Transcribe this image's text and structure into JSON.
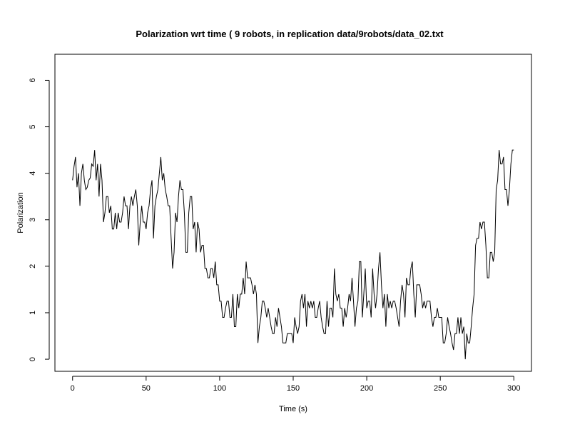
{
  "chart_data": {
    "type": "line",
    "title": "Polarization wrt time ( 9 robots, in replication  data/9robots/data_02.txt",
    "xlabel": "Time (s)",
    "ylabel": "Polarization",
    "xlim": [
      -12,
      312
    ],
    "ylim": [
      -0.26,
      6.56
    ],
    "xticks": [
      0,
      50,
      100,
      150,
      200,
      250,
      300
    ],
    "yticks": [
      0,
      1,
      2,
      3,
      4,
      5,
      6
    ],
    "line_color": "#000000",
    "grid": false,
    "series": [
      {
        "x": [
          0,
          1,
          2,
          3,
          4,
          5,
          6,
          7,
          8,
          9,
          10,
          11,
          12,
          13,
          14,
          15,
          16,
          17,
          18,
          19,
          20,
          21,
          22,
          23,
          24,
          25,
          26,
          27,
          28,
          29,
          30,
          31,
          32,
          33,
          34,
          35,
          36,
          37,
          38,
          39,
          40,
          41,
          42,
          43,
          44,
          45,
          46,
          47,
          48,
          49,
          50,
          51,
          52,
          53,
          54,
          55,
          56,
          57,
          58,
          59,
          60,
          61,
          62,
          63,
          64,
          65,
          66,
          67,
          68,
          69,
          70,
          71,
          72,
          73,
          74,
          75,
          76,
          77,
          78,
          79,
          80,
          81,
          82,
          83,
          84,
          85,
          86,
          87,
          88,
          89,
          90,
          91,
          92,
          93,
          94,
          95,
          96,
          97,
          98,
          99,
          100,
          101,
          102,
          103,
          104,
          105,
          106,
          107,
          108,
          109,
          110,
          111,
          112,
          113,
          114,
          115,
          116,
          117,
          118,
          119,
          120,
          121,
          122,
          123,
          124,
          125,
          126,
          127,
          128,
          129,
          130,
          131,
          132,
          133,
          134,
          135,
          136,
          137,
          138,
          139,
          140,
          141,
          142,
          143,
          144,
          145,
          146,
          147,
          148,
          149,
          150,
          151,
          152,
          153,
          154,
          155,
          156,
          157,
          158,
          159,
          160,
          161,
          162,
          163,
          164,
          165,
          166,
          167,
          168,
          169,
          170,
          171,
          172,
          173,
          174,
          175,
          176,
          177,
          178,
          179,
          180,
          181,
          182,
          183,
          184,
          185,
          186,
          187,
          188,
          189,
          190,
          191,
          192,
          193,
          194,
          195,
          196,
          197,
          198,
          199,
          200,
          201,
          202,
          203,
          204,
          205,
          206,
          207,
          208,
          209,
          210,
          211,
          212,
          213,
          214,
          215,
          216,
          217,
          218,
          219,
          220,
          221,
          222,
          223,
          224,
          225,
          226,
          227,
          228,
          229,
          230,
          231,
          232,
          233,
          234,
          235,
          236,
          237,
          238,
          239,
          240,
          241,
          242,
          243,
          244,
          245,
          246,
          247,
          248,
          249,
          250,
          251,
          252,
          253,
          254,
          255,
          256,
          257,
          258,
          259,
          260,
          261,
          262,
          263,
          264,
          265,
          266,
          267,
          268,
          269,
          270,
          271,
          272,
          273,
          274,
          275,
          276,
          277,
          278,
          279,
          280,
          281,
          282,
          283,
          284,
          285,
          286,
          287,
          288,
          289,
          290,
          291,
          292,
          293,
          294,
          295,
          296,
          297,
          298,
          299,
          300
        ],
        "values": [
          3.85,
          4.15,
          4.35,
          3.7,
          4.0,
          3.3,
          4.0,
          4.2,
          3.85,
          3.65,
          3.7,
          3.85,
          3.9,
          4.2,
          4.15,
          4.5,
          3.85,
          4.2,
          3.5,
          4.2,
          3.85,
          2.95,
          3.15,
          3.5,
          3.5,
          3.15,
          3.3,
          2.8,
          2.8,
          3.15,
          2.8,
          3.15,
          2.95,
          2.95,
          3.15,
          3.5,
          3.3,
          3.3,
          2.8,
          3.3,
          3.5,
          3.3,
          3.5,
          3.65,
          3.3,
          2.45,
          2.95,
          3.3,
          2.95,
          2.95,
          2.8,
          3.15,
          3.3,
          3.65,
          3.85,
          2.6,
          3.3,
          3.5,
          3.65,
          4.0,
          4.35,
          3.85,
          4.0,
          3.65,
          3.5,
          3.3,
          3.3,
          2.6,
          1.95,
          2.3,
          3.15,
          2.95,
          3.5,
          3.85,
          3.65,
          3.65,
          3.15,
          2.3,
          2.3,
          3.15,
          3.5,
          3.5,
          2.8,
          2.95,
          2.3,
          2.95,
          2.8,
          2.3,
          2.45,
          2.45,
          1.95,
          1.95,
          1.75,
          1.75,
          1.95,
          1.95,
          1.75,
          2.1,
          1.6,
          1.6,
          1.25,
          1.25,
          0.9,
          0.9,
          1.1,
          1.25,
          1.25,
          0.9,
          0.9,
          1.4,
          0.7,
          0.7,
          1.4,
          1.1,
          1.4,
          1.4,
          1.75,
          1.4,
          2.1,
          1.75,
          1.75,
          1.75,
          1.6,
          1.4,
          1.6,
          1.4,
          0.35,
          0.7,
          0.9,
          1.25,
          1.25,
          1.1,
          0.9,
          1.1,
          0.9,
          0.7,
          0.55,
          0.55,
          0.9,
          0.7,
          1.1,
          0.9,
          0.7,
          0.35,
          0.35,
          0.35,
          0.55,
          0.55,
          0.55,
          0.55,
          0.35,
          0.9,
          0.7,
          0.55,
          0.7,
          1.25,
          1.4,
          1.1,
          1.4,
          0.7,
          1.25,
          1.1,
          1.25,
          1.1,
          1.25,
          0.9,
          0.9,
          1.1,
          1.25,
          0.9,
          0.7,
          0.55,
          0.55,
          1.25,
          0.7,
          1.1,
          1.1,
          0.9,
          1.95,
          1.4,
          1.25,
          1.4,
          1.1,
          1.1,
          0.7,
          1.1,
          0.9,
          1.1,
          1.4,
          1.25,
          1.75,
          1.25,
          0.7,
          1.1,
          1.25,
          2.1,
          2.1,
          0.9,
          1.4,
          1.95,
          1.1,
          1.25,
          1.25,
          0.9,
          1.95,
          1.4,
          1.1,
          1.4,
          1.95,
          2.3,
          1.6,
          1.1,
          1.4,
          0.7,
          1.4,
          1.1,
          1.25,
          1.1,
          1.25,
          1.25,
          1.1,
          0.9,
          0.7,
          1.25,
          1.6,
          1.4,
          0.9,
          1.75,
          1.6,
          1.6,
          1.95,
          2.1,
          1.4,
          0.9,
          1.6,
          1.6,
          1.6,
          1.4,
          1.1,
          1.25,
          1.1,
          1.25,
          1.25,
          1.25,
          0.9,
          0.7,
          0.9,
          0.9,
          1.1,
          0.9,
          0.9,
          0.9,
          0.35,
          0.35,
          0.55,
          0.9,
          0.7,
          0.55,
          0.35,
          0.2,
          0.55,
          0.55,
          0.9,
          0.55,
          0.9,
          0.55,
          0.7,
          0.0,
          0.55,
          0.35,
          0.35,
          0.7,
          1.1,
          1.4,
          2.45,
          2.6,
          2.6,
          2.95,
          2.8,
          2.95,
          2.95,
          2.45,
          1.75,
          1.75,
          2.3,
          2.3,
          2.1,
          2.3,
          3.65,
          3.85,
          4.5,
          4.2,
          4.2,
          4.35,
          3.65,
          3.65,
          3.3,
          3.65,
          4.2,
          4.5,
          4.5
        ]
      }
    ]
  }
}
